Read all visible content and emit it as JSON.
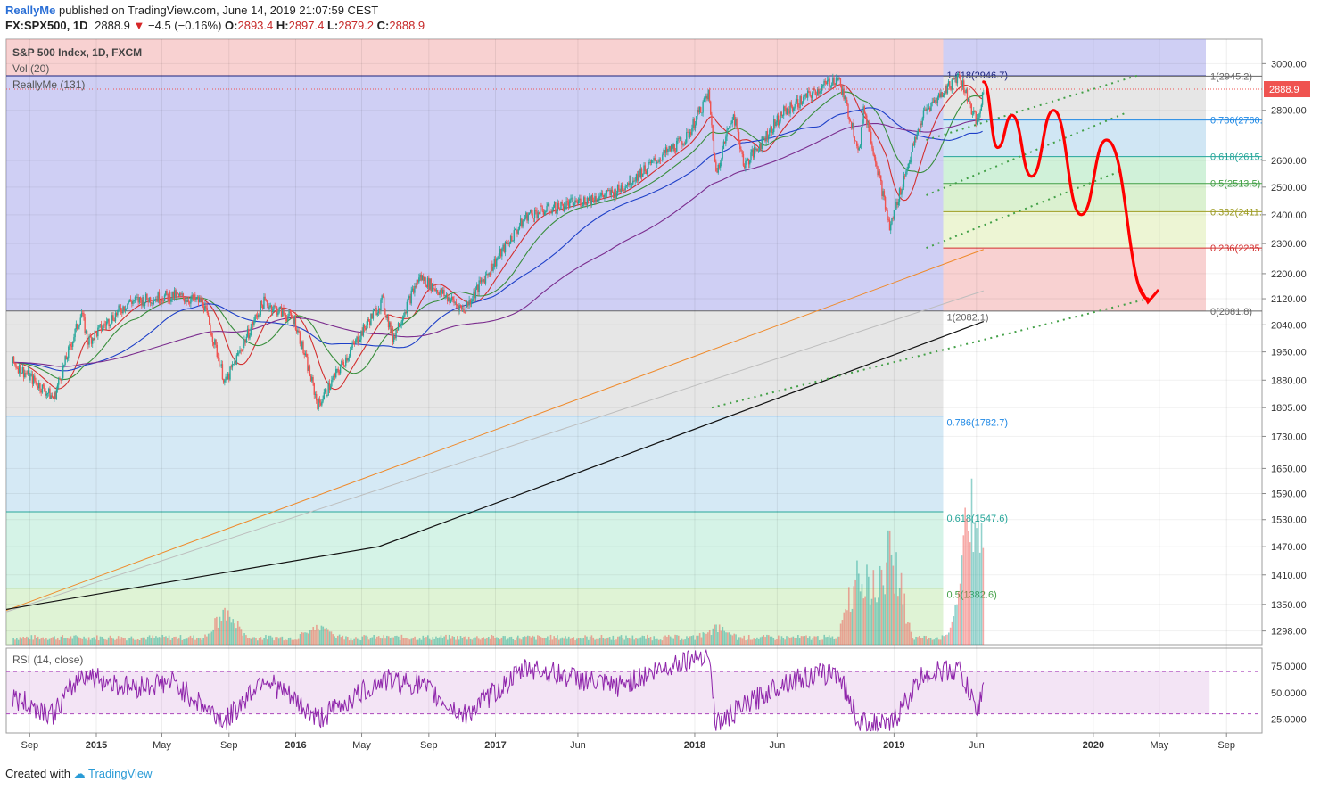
{
  "header": {
    "author": "ReallyMe",
    "published": "published on TradingView.com, June 14, 2019 21:07:59 CEST"
  },
  "symbol_line": {
    "symbol": "FX:SPX500, 1D",
    "last": "2888.9",
    "change": "−4.5 (−0.16%)",
    "open_label": "O:",
    "open": "2893.4",
    "high_label": "H:",
    "high": "2897.4",
    "low_label": "L:",
    "low": "2879.2",
    "close_label": "C:",
    "close": "2888.9"
  },
  "legends": {
    "title": "S&P 500 Index, 1D, FXCM",
    "vol": "Vol (20)",
    "indicator": "ReallyMe (131)",
    "rsi": "RSI (14, close)"
  },
  "footer": {
    "created": "Created with",
    "brand": "TradingView"
  },
  "colors": {
    "up": "#26a69a",
    "down": "#ef5350",
    "blue": "#1a237e",
    "purple": "#7b2d8e",
    "red_ma": "#d32f2f",
    "green_ma": "#388e3c",
    "orange": "#ef8a2b",
    "black": "#111111",
    "projection": "#ff0000",
    "rsi": "#8e24aa",
    "price_tag": "#ef5350"
  },
  "chart_data": {
    "type": "candlestick",
    "title": "S&P 500 Index, 1D, FXCM",
    "x_ticks": [
      "Sep",
      "2015",
      "May",
      "Sep",
      "2016",
      "May",
      "Sep",
      "2017",
      "Jun",
      "2018",
      "Jun",
      "2019",
      "Jun",
      "2020",
      "May",
      "Sep"
    ],
    "y_ticks": [
      3000,
      2800,
      2600,
      2500,
      2400,
      2300,
      2200,
      2120,
      2040,
      1960,
      1880,
      1805,
      1730,
      1650,
      1590,
      1530,
      1470,
      1410,
      1350,
      1298
    ],
    "last_price": "2888.9",
    "y_scale": "log",
    "fib_outer": [
      {
        "label": "1.618(2946.7)",
        "value": 2946.7
      },
      {
        "label": "1(2082.1)",
        "value": 2082.1
      },
      {
        "label": "0.786(1782.7)",
        "value": 1782.7
      },
      {
        "label": "0.618(1547.6)",
        "value": 1547.6
      },
      {
        "label": "0.5(1382.6)",
        "value": 1382.6
      }
    ],
    "fib_inner": [
      {
        "label": "1(2945.2)",
        "value": 2945.2
      },
      {
        "label": "0.786(2760.",
        "value": 2760
      },
      {
        "label": "0.618(2615.",
        "value": 2615
      },
      {
        "label": "0.5(2513.5)",
        "value": 2513.5
      },
      {
        "label": "0.382(2411.",
        "value": 2411
      },
      {
        "label": "0.236(2285.",
        "value": 2285
      },
      {
        "label": "0(2081.8)",
        "value": 2081.8
      }
    ],
    "price_path": [
      {
        "x": "2014-08-01",
        "y": 1930
      },
      {
        "x": "2014-10-15",
        "y": 1830
      },
      {
        "x": "2014-12-05",
        "y": 2075
      },
      {
        "x": "2014-12-16",
        "y": 1990
      },
      {
        "x": "2015-03-01",
        "y": 2110
      },
      {
        "x": "2015-05-20",
        "y": 2130
      },
      {
        "x": "2015-07-15",
        "y": 2110
      },
      {
        "x": "2015-08-25",
        "y": 1870
      },
      {
        "x": "2015-11-03",
        "y": 2110
      },
      {
        "x": "2015-12-30",
        "y": 2055
      },
      {
        "x": "2016-02-11",
        "y": 1810
      },
      {
        "x": "2016-06-08",
        "y": 2115
      },
      {
        "x": "2016-06-27",
        "y": 2000
      },
      {
        "x": "2016-08-15",
        "y": 2190
      },
      {
        "x": "2016-11-04",
        "y": 2085
      },
      {
        "x": "2017-03-01",
        "y": 2400
      },
      {
        "x": "2017-08-08",
        "y": 2480
      },
      {
        "x": "2017-12-18",
        "y": 2690
      },
      {
        "x": "2018-01-26",
        "y": 2870
      },
      {
        "x": "2018-02-09",
        "y": 2550
      },
      {
        "x": "2018-03-12",
        "y": 2790
      },
      {
        "x": "2018-04-02",
        "y": 2580
      },
      {
        "x": "2018-06-12",
        "y": 2790
      },
      {
        "x": "2018-09-20",
        "y": 2940
      },
      {
        "x": "2018-10-29",
        "y": 2640
      },
      {
        "x": "2018-11-07",
        "y": 2810
      },
      {
        "x": "2018-12-24",
        "y": 2350
      },
      {
        "x": "2019-02-25",
        "y": 2790
      },
      {
        "x": "2019-04-30",
        "y": 2950
      },
      {
        "x": "2019-06-03",
        "y": 2740
      },
      {
        "x": "2019-06-14",
        "y": 2889
      }
    ],
    "projection": [
      {
        "x": "2019-06-14",
        "y": 2920
      },
      {
        "x": "2019-07-10",
        "y": 2650
      },
      {
        "x": "2019-08-05",
        "y": 2780
      },
      {
        "x": "2019-09-10",
        "y": 2540
      },
      {
        "x": "2019-10-20",
        "y": 2800
      },
      {
        "x": "2019-12-10",
        "y": 2400
      },
      {
        "x": "2020-01-25",
        "y": 2680
      },
      {
        "x": "2020-04-10",
        "y": 2120
      }
    ],
    "rsi": {
      "levels": [
        70,
        30
      ],
      "y_ticks": [
        "75.0000",
        "50.0000",
        "25.0000"
      ],
      "x": [
        "2014-08-01",
        "2014-10-15",
        "2014-12-05",
        "2015-03-01",
        "2015-05-20",
        "2015-08-25",
        "2015-11-03",
        "2016-02-11",
        "2016-06-08",
        "2016-08-15",
        "2016-11-04",
        "2017-03-01",
        "2017-08-08",
        "2017-12-18",
        "2018-01-26",
        "2018-02-09",
        "2018-06-12",
        "2018-09-20",
        "2018-10-29",
        "2018-12-24",
        "2019-02-25",
        "2019-04-30",
        "2019-06-03",
        "2019-06-14"
      ],
      "values": [
        45,
        30,
        68,
        55,
        60,
        22,
        65,
        25,
        62,
        58,
        28,
        74,
        55,
        82,
        88,
        20,
        60,
        70,
        22,
        18,
        68,
        72,
        32,
        60
      ]
    },
    "volume_peaks": [
      {
        "x": "2015-08-25",
        "v": 0.25
      },
      {
        "x": "2016-02-11",
        "v": 0.12
      },
      {
        "x": "2018-02-09",
        "v": 0.1
      },
      {
        "x": "2018-10-29",
        "v": 0.8
      },
      {
        "x": "2018-12-24",
        "v": 0.95
      },
      {
        "x": "2019-05-15",
        "v": 0.7
      },
      {
        "x": "2019-06-03",
        "v": 1.0
      }
    ]
  }
}
